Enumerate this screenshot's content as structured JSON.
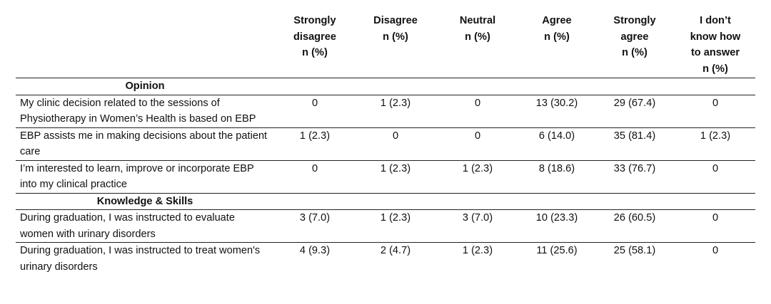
{
  "columns": [
    {
      "line1": "Strongly",
      "line2": "disagree",
      "line3": "n (%)",
      "line4": ""
    },
    {
      "line1": "Disagree",
      "line2": "n (%)",
      "line3": "",
      "line4": ""
    },
    {
      "line1": "Neutral",
      "line2": "n (%)",
      "line3": "",
      "line4": ""
    },
    {
      "line1": "Agree",
      "line2": "n (%)",
      "line3": "",
      "line4": ""
    },
    {
      "line1": "Strongly",
      "line2": "agree",
      "line3": "n (%)",
      "line4": ""
    },
    {
      "line1": "I don’t",
      "line2": "know how",
      "line3": "to answer",
      "line4": "n (%)"
    }
  ],
  "sections": [
    {
      "title": "Opinion",
      "rows": [
        {
          "statement": "My clinic decision related to the sessions of Physiotherapy in Women’s Health is based on EBP",
          "values": [
            "0",
            "1 (2.3)",
            "0",
            "13 (30.2)",
            "29 (67.4)",
            "0"
          ]
        },
        {
          "statement": "EBP assists me in making decisions about the patient care",
          "values": [
            "1 (2.3)",
            "0",
            "0",
            "6 (14.0)",
            "35 (81.4)",
            "1 (2.3)"
          ]
        },
        {
          "statement": "I’m interested to learn, improve or incorporate EBP into my clinical practice",
          "values": [
            "0",
            "1 (2.3)",
            "1 (2.3)",
            "8 (18.6)",
            "33 (76.7)",
            "0"
          ]
        }
      ]
    },
    {
      "title": "Knowledge & Skills",
      "rows": [
        {
          "statement": "During graduation, I was instructed to evaluate women with urinary disorders",
          "values": [
            "3 (7.0)",
            "1 (2.3)",
            "3 (7.0)",
            "10 (23.3)",
            "26 (60.5)",
            "0"
          ]
        },
        {
          "statement": "During graduation, I was instructed to treat women's urinary disorders",
          "values": [
            "4 (9.3)",
            "2 (4.7)",
            "1 (2.3)",
            "11 (25.6)",
            "25 (58.1)",
            "0"
          ]
        }
      ]
    }
  ]
}
